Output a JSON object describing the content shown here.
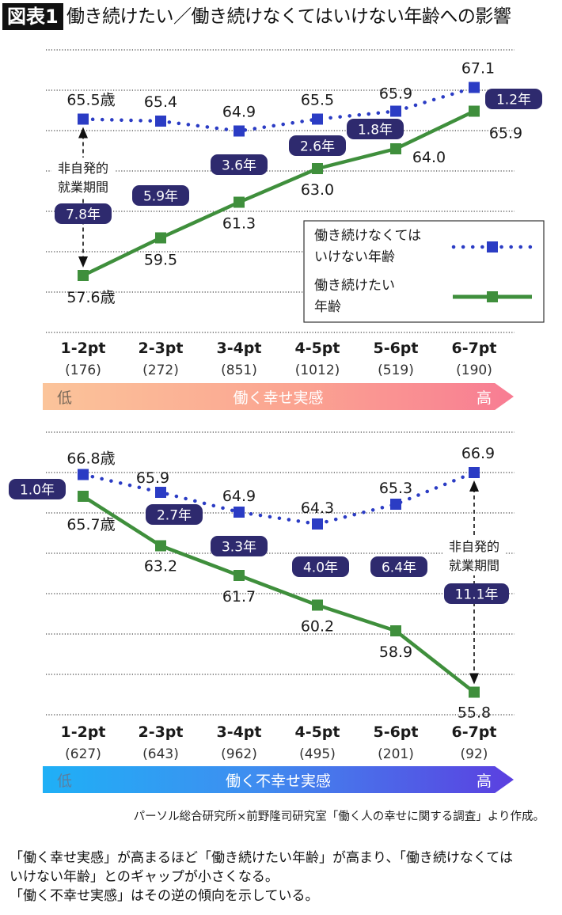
{
  "title": {
    "badge": "図表1",
    "text": "働き続けたい／働き続けなくてはいけない年齢への影響"
  },
  "colors": {
    "must_work_series": "#2b3cc4",
    "want_work_series": "#3f8f3c",
    "gap_bubble": "#2e2a6e",
    "gridline": "#444444"
  },
  "chart_data": [
    {
      "type": "line",
      "title": "働く幸せ実感",
      "categories": [
        "1-2pt",
        "2-3pt",
        "3-4pt",
        "4-5pt",
        "5-6pt",
        "6-7pt"
      ],
      "sample_sizes": [
        "(176)",
        "(272)",
        "(851)",
        "(1012)",
        "(519)",
        "(190)"
      ],
      "series": [
        {
          "name": "働き続けなくてはいけない年齢",
          "style": "dotted-square",
          "values": [
            65.5,
            65.4,
            64.9,
            65.5,
            65.9,
            67.1
          ],
          "labels": [
            "65.5歳",
            "65.4",
            "64.9",
            "65.5",
            "65.9",
            "67.1"
          ]
        },
        {
          "name": "働き続けたい年齢",
          "style": "solid-square",
          "values": [
            57.6,
            59.5,
            61.3,
            63.0,
            64.0,
            65.9
          ],
          "labels": [
            "57.6歳",
            "59.5",
            "61.3",
            "63.0",
            "64.0",
            "65.9"
          ]
        }
      ],
      "gaps": [
        "7.8年",
        "5.9年",
        "3.6年",
        "2.6年",
        "1.8年",
        "1.2年"
      ],
      "annotation": {
        "text_line1": "非自発的",
        "text_line2": "就業期間",
        "category": "1-2pt"
      },
      "axis_bar": {
        "low": "低",
        "label": "働く幸せ実感",
        "high": "高"
      },
      "ylim": [
        55,
        69
      ],
      "grid": true,
      "legend": {
        "placement": "right-middle",
        "items": [
          {
            "line1": "働き続けなくては",
            "line2": "いけない年齢"
          },
          {
            "line1": "働き続けたい",
            "line2": "年齢"
          }
        ]
      }
    },
    {
      "type": "line",
      "title": "働く不幸せ実感",
      "categories": [
        "1-2pt",
        "2-3pt",
        "3-4pt",
        "4-5pt",
        "5-6pt",
        "6-7pt"
      ],
      "sample_sizes": [
        "(627)",
        "(643)",
        "(962)",
        "(495)",
        "(201)",
        "(92)"
      ],
      "series": [
        {
          "name": "働き続けなくてはいけない年齢",
          "style": "dotted-square",
          "values": [
            66.8,
            65.9,
            64.9,
            64.3,
            65.3,
            66.9
          ],
          "labels": [
            "66.8歳",
            "65.9",
            "64.9",
            "64.3",
            "65.3",
            "66.9"
          ]
        },
        {
          "name": "働き続けたい年齢",
          "style": "solid-square",
          "values": [
            65.7,
            63.2,
            61.7,
            60.2,
            58.9,
            55.8
          ],
          "labels": [
            "65.7歳",
            "63.2",
            "61.7",
            "60.2",
            "58.9",
            "55.8"
          ]
        }
      ],
      "gaps": [
        "1.0年",
        "2.7年",
        "3.3年",
        "4.0年",
        "6.4年",
        "11.1年"
      ],
      "annotation": {
        "text_line1": "非自発的",
        "text_line2": "就業期間",
        "category": "6-7pt"
      },
      "axis_bar": {
        "low": "低",
        "label": "働く不幸せ実感",
        "high": "高"
      },
      "ylim": [
        54.8,
        68.9
      ],
      "grid": true
    }
  ],
  "source": "パーソル総合研究所×前野隆司研究室「働く人の幸せに関する調査」より作成。",
  "note": [
    "「働く幸せ実感」が高まるほど「働き続けたい年齢」が高まり、「働き続けなくては",
    " いけない年齢」とのギャップが小さくなる。",
    "「働く不幸せ実感」はその逆の傾向を示している。"
  ]
}
